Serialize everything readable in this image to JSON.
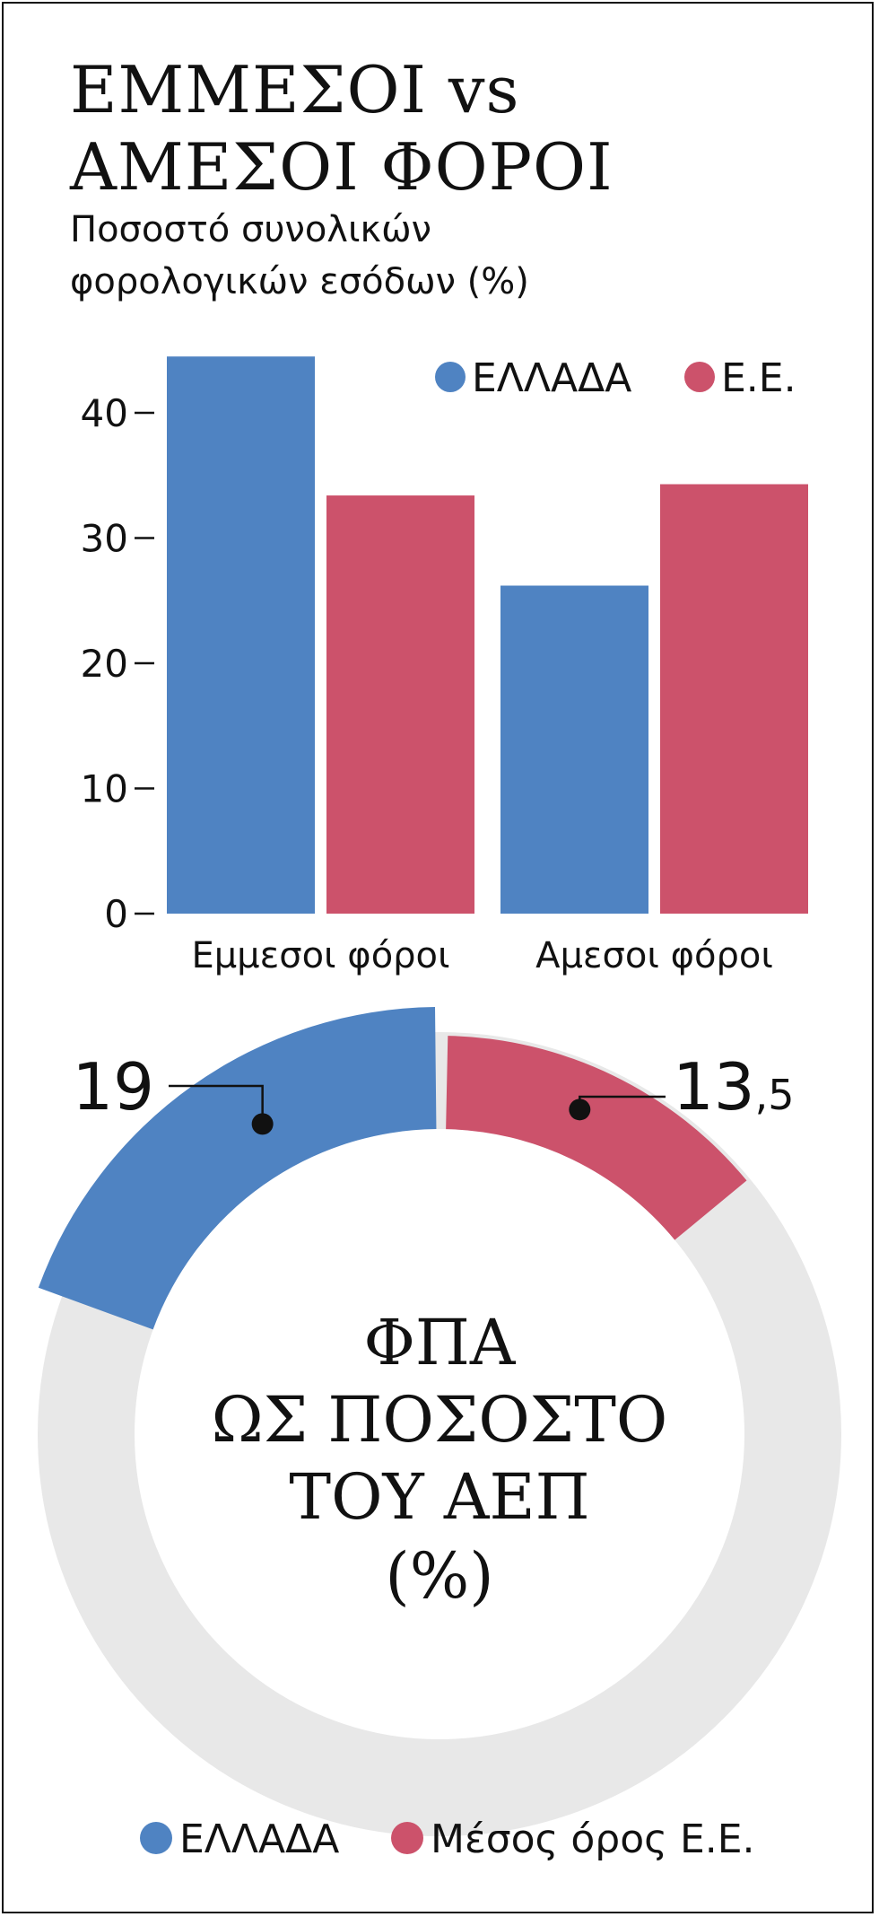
{
  "title_lines": [
    "ΕΜΜΕΣΟΙ vs",
    "ΑΜΕΣΟΙ ΦΟΡΟΙ"
  ],
  "subtitle_lines": [
    "Ποσοστό συνολικών",
    "φορολογικών εσόδων (%)"
  ],
  "colors": {
    "greece": "#4f83c2",
    "eu": "#cc526b",
    "ring_bg": "#e8e8e8",
    "text": "#111111"
  },
  "chart_data": [
    {
      "type": "bar",
      "categories": [
        "Εμμεσοι φόροι",
        "Αμεσοι φόροι"
      ],
      "series": [
        {
          "name": "ΕΛΛΑΔΑ",
          "values": [
            44.5,
            26.2
          ]
        },
        {
          "name": "Ε.Ε.",
          "values": [
            33.4,
            34.3
          ]
        }
      ],
      "yticks": [
        0,
        10,
        20,
        30,
        40
      ],
      "ylim": [
        0,
        45
      ],
      "legend_position": "top-right",
      "grid": false
    },
    {
      "type": "pie",
      "variant": "donut-segments",
      "labels": [
        "ΕΛΛΑΔΑ",
        "Μέσος όρος Ε.Ε."
      ],
      "values": [
        19,
        13.5
      ],
      "value_labels": [
        {
          "main": "19",
          "sub": ""
        },
        {
          "main": "13",
          "sub": ",5"
        }
      ],
      "center_lines": [
        "ΦΠΑ",
        "ΩΣ ΠΟΣΟΣΤΟ",
        "ΤΟΥ ΑΕΠ",
        "(%)"
      ],
      "legend_position": "bottom"
    }
  ]
}
